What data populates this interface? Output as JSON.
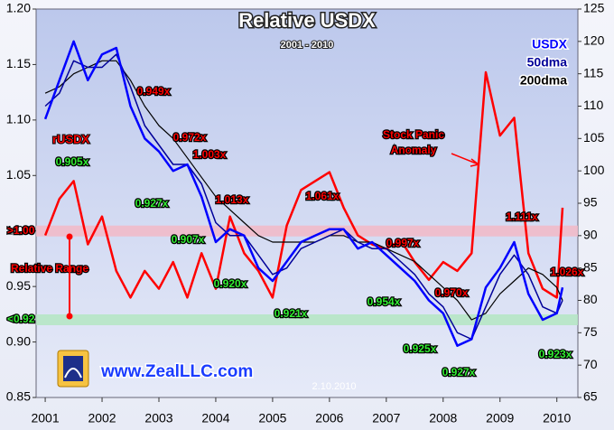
{
  "chart_data": {
    "type": "line",
    "title": "Relative USDX",
    "subtitle": "2001 - 2010",
    "website": "www.ZealLLC.com",
    "date": "2.10.2010",
    "x": [
      2001,
      2001.25,
      2001.5,
      2001.75,
      2002,
      2002.25,
      2002.5,
      2002.75,
      2003,
      2003.25,
      2003.5,
      2003.75,
      2004,
      2004.25,
      2004.5,
      2004.75,
      2005,
      2005.25,
      2005.5,
      2005.75,
      2006,
      2006.25,
      2006.5,
      2006.75,
      2007,
      2007.25,
      2007.5,
      2007.75,
      2008,
      2008.25,
      2008.5,
      2008.75,
      2009,
      2009.25,
      2009.5,
      2009.75,
      2010,
      2010.1
    ],
    "xlim": [
      2000.84,
      2010.37
    ],
    "xticks": [
      2001,
      2002,
      2003,
      2004,
      2005,
      2006,
      2007,
      2008,
      2009,
      2010
    ],
    "ylim": [
      0.85,
      1.2
    ],
    "yticks": [
      0.85,
      {
        "value": 0.9,
        "label": "0.90"
      },
      0.95,
      {
        "value": 1,
        "label": "1.00"
      },
      1.05,
      {
        "value": 1.1,
        "label": "1.10"
      },
      1.15,
      {
        "value": 1.2,
        "label": "1.20"
      }
    ],
    "y2lim": [
      65,
      125
    ],
    "y2ticks": [
      65,
      70,
      75,
      80,
      85,
      90,
      95,
      100,
      105,
      110,
      115,
      120,
      125
    ],
    "series": [
      {
        "name": "rUSDX",
        "color": "#ff0000",
        "values": [
          0.996,
          1.029,
          1.045,
          0.988,
          1.013,
          0.964,
          0.94,
          0.964,
          0.948,
          0.972,
          0.94,
          0.98,
          0.948,
          1.013,
          0.98,
          0.964,
          0.94,
          1.005,
          1.037,
          1.045,
          1.053,
          1.021,
          0.996,
          0.988,
          0.984,
          0.992,
          0.972,
          0.956,
          0.972,
          0.964,
          0.98,
          1.143,
          1.086,
          1.102,
          0.98,
          0.948,
          0.94,
          1.021
        ]
      },
      {
        "name": "USDX",
        "color": "#0000ff",
        "axis": "y2",
        "values": [
          108,
          114,
          120,
          114,
          118,
          119,
          110,
          105,
          103,
          100,
          101,
          96,
          89,
          91,
          90,
          85,
          83,
          86,
          89,
          90,
          91,
          91,
          88,
          89,
          87,
          85,
          83,
          80,
          78,
          73,
          74,
          82,
          85,
          89,
          81,
          77,
          78,
          82
        ]
      },
      {
        "name": "50dma",
        "color": "#000099",
        "axis": "y2",
        "values": [
          110,
          112,
          117,
          116,
          116,
          118,
          113,
          107,
          104,
          101,
          101,
          98,
          92,
          90,
          90,
          87,
          84,
          85,
          88,
          89,
          90,
          91,
          89,
          88,
          88,
          86,
          84,
          81,
          79,
          75,
          74,
          79,
          84,
          87,
          84,
          79,
          78,
          80
        ]
      },
      {
        "name": "200dma",
        "color": "#000000",
        "axis": "y2",
        "values": [
          112,
          113,
          115,
          116,
          117,
          117,
          114,
          110,
          107,
          105,
          102,
          99,
          96,
          94,
          92,
          90,
          89,
          89,
          89,
          89,
          90,
          90,
          89,
          89,
          88,
          87,
          86,
          84,
          82,
          80,
          77,
          78,
          81,
          83,
          85,
          84,
          82,
          80
        ]
      }
    ],
    "reference_bands": [
      {
        "label": ">1.00",
        "value": 1,
        "color": "#f2b8c6"
      },
      {
        "label": "<0.92",
        "value": 0.92,
        "color": "#b4e6c2"
      }
    ],
    "range_label": "Relative Range",
    "anomaly_label": [
      "Stock Panic",
      "Anomaly"
    ],
    "annotations": [
      {
        "text": "0.949x",
        "color": "#ff0000"
      },
      {
        "text": "0.905x",
        "color": "#33ee33"
      },
      {
        "text": "0.972x",
        "color": "#ff0000"
      },
      {
        "text": "1.003x",
        "color": "#ff0000"
      },
      {
        "text": "0.927x",
        "color": "#33ee33"
      },
      {
        "text": "0.907x",
        "color": "#33ee33"
      },
      {
        "text": "1.013x",
        "color": "#ff0000"
      },
      {
        "text": "0.920x",
        "color": "#33ee33"
      },
      {
        "text": "1.061x",
        "color": "#ff0000"
      },
      {
        "text": "0.921x",
        "color": "#33ee33"
      },
      {
        "text": "0.997x",
        "color": "#ff0000"
      },
      {
        "text": "0.954x",
        "color": "#33ee33"
      },
      {
        "text": "0.970x",
        "color": "#ff0000"
      },
      {
        "text": "0.925x",
        "color": "#33ee33"
      },
      {
        "text": "0.927x",
        "color": "#33ee33"
      },
      {
        "text": "1.111x",
        "color": "#ff0000"
      },
      {
        "text": "1.026x",
        "color": "#ff0000"
      },
      {
        "text": "0.923x",
        "color": "#33ee33"
      }
    ]
  }
}
